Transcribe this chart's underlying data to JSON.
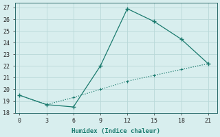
{
  "xlabel": "Humidex (Indice chaleur)",
  "x_solid": [
    0,
    3,
    6,
    9,
    12,
    15,
    18,
    21
  ],
  "y_solid": [
    19.5,
    18.7,
    18.5,
    22.0,
    26.9,
    25.8,
    24.3,
    22.2
  ],
  "x_dotted": [
    0,
    3,
    6,
    9,
    12,
    15,
    18,
    21
  ],
  "y_dotted": [
    19.5,
    18.7,
    19.3,
    20.0,
    20.7,
    21.2,
    21.7,
    22.2
  ],
  "line_color": "#1a7a6e",
  "bg_color": "#d8eeee",
  "grid_color": "#b8d8d8",
  "xlim": [
    -0.5,
    22
  ],
  "ylim": [
    18,
    27.4
  ],
  "xticks": [
    0,
    3,
    6,
    9,
    12,
    15,
    18,
    21
  ],
  "yticks": [
    18,
    19,
    20,
    21,
    22,
    23,
    24,
    25,
    26,
    27
  ]
}
